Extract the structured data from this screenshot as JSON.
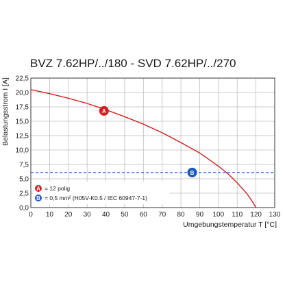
{
  "chart_data": {
    "type": "line",
    "title": "BVZ 7.62HP/../180 - SVD 7.62HP/../270",
    "xlabel": "Umgebungstemperatur T [°C]",
    "ylabel": "Belastungsstrom I [A]",
    "xlim": [
      0,
      130
    ],
    "ylim": [
      0,
      22.5
    ],
    "x_ticks": [
      "0",
      "10",
      "20",
      "30",
      "40",
      "50",
      "60",
      "70",
      "80",
      "90",
      "100",
      "110",
      "120",
      "130"
    ],
    "y_ticks": [
      "0,0",
      "2,5",
      "5,0",
      "7,5",
      "10,0",
      "12,5",
      "15,0",
      "17,5",
      "20,0",
      "22,5"
    ],
    "grid": true,
    "series": [
      {
        "name": "A",
        "color": "#cc1f1f",
        "style": "solid",
        "x": [
          0,
          10,
          20,
          30,
          40,
          50,
          60,
          70,
          80,
          90,
          100,
          105,
          110,
          115,
          118,
          120
        ],
        "y": [
          20.5,
          19.8,
          19.0,
          18.1,
          17.0,
          15.8,
          14.5,
          13.0,
          11.3,
          9.5,
          7.2,
          5.9,
          4.3,
          2.5,
          1.1,
          0.0
        ]
      },
      {
        "name": "B",
        "color": "#1a56c8",
        "style": "dashed",
        "x": [
          0,
          130
        ],
        "y": [
          6.1,
          6.1
        ]
      }
    ],
    "markers": [
      {
        "label": "A",
        "x": 39,
        "y": 16.8,
        "color": "#d42020"
      },
      {
        "label": "B",
        "x": 86,
        "y": 6.1,
        "color": "#1a56c8"
      }
    ],
    "legend": {
      "placement": "bottom-left",
      "entries": [
        {
          "label": "A",
          "text": "= 12 polig",
          "color": "#d42020"
        },
        {
          "label": "B",
          "text": "= 0,5 mm² (H05V-K0.5 / IEC 60947-7-1)",
          "color": "#1a56c8"
        }
      ]
    }
  }
}
